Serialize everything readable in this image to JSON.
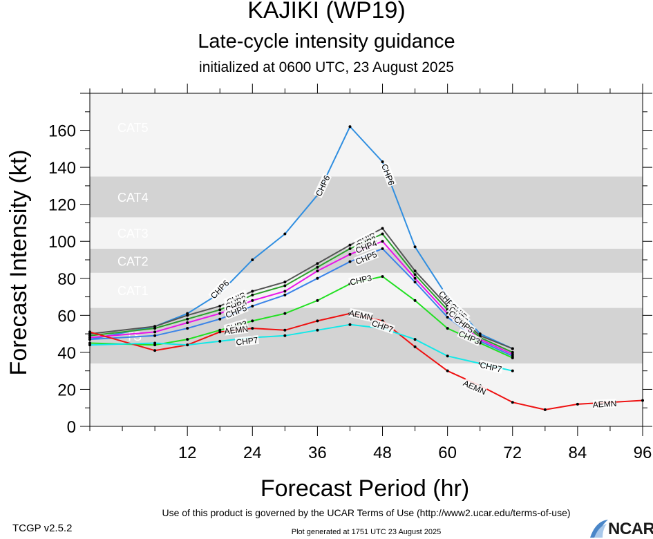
{
  "header": {
    "storm": "KAJIKI (WP19)",
    "subtitle": "Late-cycle intensity guidance",
    "initialized": "initialized at 0600 UTC, 23 August 2025"
  },
  "footer": {
    "terms": "Use of this product is governed by the UCAR Terms of Use (http://www2.ucar.edu/terms-of-use)",
    "version": "TCGP v2.5.2",
    "generated": "Plot generated at 1751 UTC   23 August 2025",
    "logo": "NCAR"
  },
  "chart_data": {
    "type": "line",
    "xlabel": "Forecast Period (hr)",
    "ylabel": "Forecast Intensity (kt)",
    "xlim": [
      -6,
      96
    ],
    "ylim": [
      0,
      180
    ],
    "xticks": [
      12,
      24,
      36,
      48,
      60,
      72,
      84,
      96
    ],
    "yticks": [
      0,
      20,
      40,
      60,
      80,
      100,
      120,
      140,
      160
    ],
    "categories": [
      {
        "label": "TS",
        "range": [
          34,
          64
        ],
        "shaded": true
      },
      {
        "label": "CAT1",
        "range": [
          64,
          83
        ],
        "shaded": false
      },
      {
        "label": "CAT2",
        "range": [
          83,
          96
        ],
        "shaded": true
      },
      {
        "label": "CAT3",
        "range": [
          96,
          113
        ],
        "shaded": false
      },
      {
        "label": "CAT4",
        "range": [
          113,
          135
        ],
        "shaded": true
      },
      {
        "label": "CAT5",
        "range": [
          135,
          180
        ],
        "shaded": false
      }
    ],
    "colors": {
      "shaded": "#d3d3d3",
      "unshaded": "#f4f4f4",
      "category_text": "#ffffff"
    },
    "series": [
      {
        "name": "CHP6",
        "color": "#2f8ee0",
        "x": [
          -6,
          6,
          12,
          18,
          24,
          30,
          36,
          42,
          48,
          54,
          60,
          66,
          72
        ],
        "y": [
          47,
          54,
          61,
          72,
          90,
          104,
          125,
          162,
          143,
          97,
          70,
          50,
          42
        ],
        "labels": [
          [
            18,
            74
          ],
          [
            37,
            130
          ],
          [
            49,
            136
          ],
          [
            60,
            68
          ]
        ]
      },
      {
        "name": "CHIP",
        "color": "#555555",
        "x": [
          -6,
          6,
          12,
          18,
          24,
          30,
          36,
          42,
          48,
          54,
          60,
          66,
          72
        ],
        "y": [
          50,
          54,
          60,
          65,
          73,
          78,
          88,
          98,
          107,
          84,
          65,
          49,
          42
        ],
        "labels": [
          [
            21,
            69
          ],
          [
            45,
            101
          ],
          [
            62,
            62
          ]
        ]
      },
      {
        "name": "CHP2",
        "color": "#2ca02c",
        "x": [
          -6,
          6,
          12,
          18,
          24,
          30,
          36,
          42,
          48,
          54,
          60,
          66,
          72
        ],
        "y": [
          49,
          53,
          58,
          63,
          71,
          76,
          86,
          96,
          104,
          82,
          63,
          48,
          40
        ],
        "labels": [
          [
            21,
            67
          ],
          [
            45,
            99
          ],
          [
            62,
            60
          ]
        ]
      },
      {
        "name": "CHP4",
        "color": "#e815e8",
        "x": [
          -6,
          6,
          12,
          18,
          24,
          30,
          36,
          42,
          48,
          54,
          60,
          66,
          72
        ],
        "y": [
          48,
          51,
          56,
          61,
          68,
          73,
          84,
          93,
          100,
          80,
          61,
          47,
          39
        ],
        "labels": [
          [
            21,
            65
          ],
          [
            45,
            97
          ],
          [
            62,
            58
          ]
        ]
      },
      {
        "name": "CHP5",
        "color": "#3a83e8",
        "x": [
          -6,
          6,
          12,
          18,
          24,
          30,
          36,
          42,
          48,
          54,
          60,
          66,
          72
        ],
        "y": [
          47,
          49,
          53,
          58,
          65,
          71,
          80,
          89,
          96,
          78,
          59,
          46,
          38
        ],
        "labels": [
          [
            21,
            62
          ],
          [
            45,
            91
          ],
          [
            63,
            55
          ]
        ]
      },
      {
        "name": "CHP3",
        "color": "#22e022",
        "x": [
          -6,
          6,
          12,
          18,
          24,
          30,
          36,
          42,
          48,
          54,
          60,
          66,
          72
        ],
        "y": [
          45,
          44,
          47,
          52,
          57,
          61,
          68,
          77,
          81,
          68,
          53,
          45,
          37
        ],
        "labels": [
          [
            21,
            54
          ],
          [
            44,
            79
          ],
          [
            64,
            48
          ]
        ]
      },
      {
        "name": "AEMN",
        "color": "#ee1111",
        "x": [
          -6,
          6,
          12,
          18,
          24,
          30,
          36,
          42,
          48,
          54,
          60,
          66,
          72,
          78,
          84,
          96
        ],
        "y": [
          51,
          41,
          44,
          51,
          53,
          52,
          57,
          61,
          57,
          43,
          30,
          22,
          13,
          9,
          12,
          14
        ],
        "labels": [
          [
            21,
            52
          ],
          [
            44,
            60
          ],
          [
            65,
            21
          ],
          [
            89,
            12
          ]
        ]
      },
      {
        "name": "CHP7",
        "color": "#13e8e8",
        "x": [
          -6,
          6,
          12,
          18,
          24,
          30,
          36,
          42,
          48,
          54,
          60,
          66,
          72
        ],
        "y": [
          44,
          45,
          44,
          46,
          48,
          49,
          52,
          55,
          53,
          47,
          38,
          34,
          30
        ],
        "labels": [
          [
            23,
            46
          ],
          [
            48,
            54
          ],
          [
            68,
            32
          ]
        ]
      }
    ]
  }
}
